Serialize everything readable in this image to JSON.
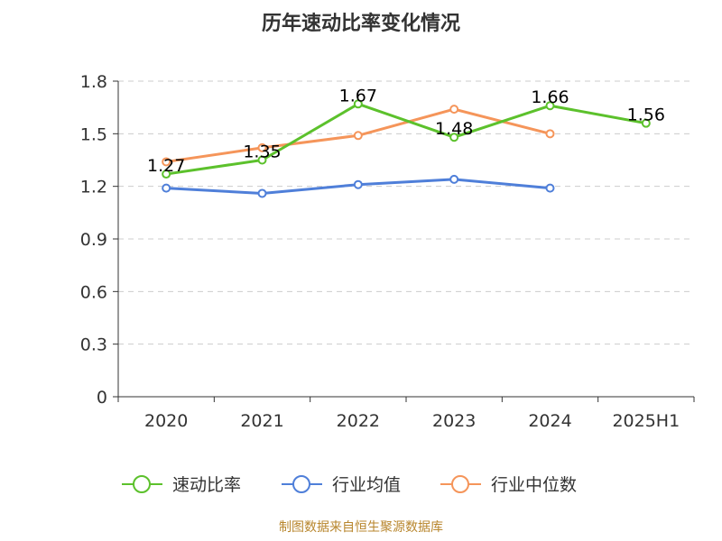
{
  "chart_data": {
    "type": "line",
    "title": "历年速动比率变化情况",
    "categories": [
      "2020",
      "2021",
      "2022",
      "2023",
      "2024",
      "2025H1"
    ],
    "ylim": [
      0,
      1.8
    ],
    "yticks": [
      "0",
      "0.3",
      "0.6",
      "0.9",
      "1.2",
      "1.5",
      "1.8"
    ],
    "grid": true,
    "legend_position": "bottom",
    "series": [
      {
        "name": "速动比率",
        "color": "#5cc12c",
        "values": [
          1.27,
          1.35,
          1.67,
          1.48,
          1.66,
          1.56
        ],
        "labels": [
          "1.27",
          "1.35",
          "1.67",
          "1.48",
          "1.66",
          "1.56"
        ]
      },
      {
        "name": "行业均值",
        "color": "#4f7fd9",
        "values": [
          1.19,
          1.16,
          1.21,
          1.24,
          1.19,
          null
        ]
      },
      {
        "name": "行业中位数",
        "color": "#f5955a",
        "values": [
          1.34,
          1.42,
          1.49,
          1.64,
          1.5,
          null
        ]
      }
    ],
    "source": "制图数据来自恒生聚源数据库"
  }
}
